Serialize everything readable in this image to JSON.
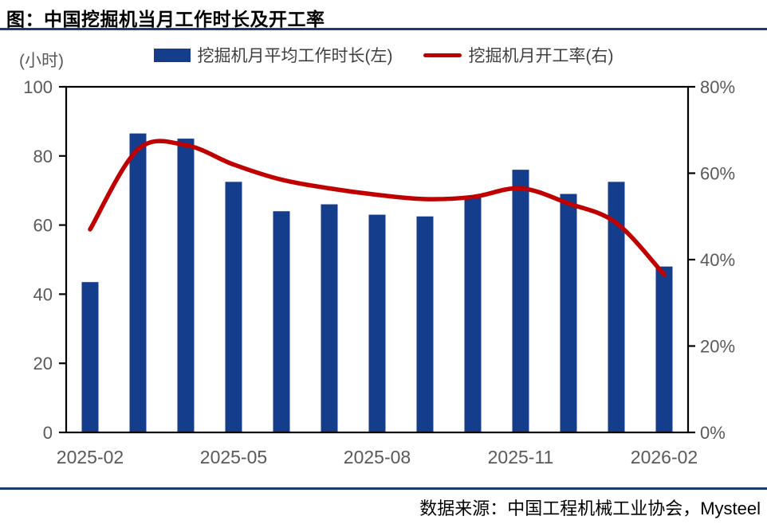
{
  "header": {
    "title": "图：中国挖掘机当月工作时长及开工率"
  },
  "axis_unit_label": "(小时)",
  "legend": {
    "bar_label": "挖掘机月平均工作时长(左)",
    "line_label": "挖掘机月开工率(右)"
  },
  "footer": {
    "source": "数据来源：中国工程机械工业协会，Mysteel"
  },
  "colors": {
    "bar": "#143E8C",
    "line": "#C00000",
    "rule": "#1F3A6E",
    "axis": "#000000",
    "tick_text": "#595959"
  },
  "chart_data": {
    "type": "bar",
    "subtype": "combo-bar-line",
    "title": "图：中国挖掘机当月工作时长及开工率",
    "categories": [
      "2025-02",
      "2025-03",
      "2025-04",
      "2025-05",
      "2025-06",
      "2025-07",
      "2025-08",
      "2025-09",
      "2025-10",
      "2025-11",
      "2025-12",
      "2026-01",
      "2026-02"
    ],
    "series": [
      {
        "name": "挖掘机月平均工作时长(左)",
        "type": "bar",
        "axis": "left",
        "unit": "小时",
        "values": [
          43.5,
          86.5,
          85,
          72.5,
          64,
          66,
          63,
          62.5,
          68,
          76,
          69,
          72.5,
          48
        ]
      },
      {
        "name": "挖掘机月开工率(右)",
        "type": "line",
        "axis": "right",
        "unit": "%",
        "values": [
          47,
          65.5,
          66.5,
          62,
          58.5,
          56.5,
          55,
          54,
          54.5,
          56.5,
          53,
          48.5,
          36.5
        ]
      }
    ],
    "left_axis": {
      "title": "(小时)",
      "min": 0,
      "max": 100,
      "ticks": [
        0,
        20,
        40,
        60,
        80,
        100
      ]
    },
    "right_axis": {
      "min": 0,
      "max": 80,
      "ticks": [
        0,
        20,
        40,
        60,
        80
      ],
      "tick_suffix": "%"
    },
    "x_ticks": {
      "indices": [
        0,
        3,
        6,
        9,
        12
      ],
      "labels": [
        "2025-02",
        "2025-05",
        "2025-08",
        "2025-11",
        "2026-02"
      ]
    },
    "grid": false,
    "legend_position": "top",
    "source": "数据来源：中国工程机械工业协会，Mysteel"
  }
}
